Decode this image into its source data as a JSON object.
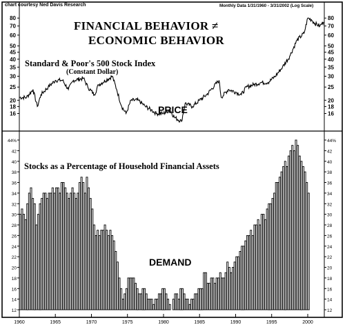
{
  "header": {
    "credit": "chart courtesy Ned Davis Research",
    "range": "Monthly Data 1/31/1960 - 3/31/2002 (Log Scale)"
  },
  "title": {
    "line1": "FINANCIAL BEHAVIOR ≠",
    "line2": "ECONOMIC BEHAVIOR"
  },
  "chart_data": [
    {
      "type": "line",
      "title": "Standard & Poor's 500 Stock Index",
      "subtitle": "(Constant Dollar)",
      "annotation": "PRICE",
      "scale": "log",
      "ylim": [
        14,
        85
      ],
      "y_ticks": [
        16,
        18,
        20,
        25,
        30,
        35,
        40,
        45,
        50,
        60,
        70,
        80
      ],
      "x": [
        1960.0,
        1961.0,
        1961.9,
        1962.5,
        1963.0,
        1964.0,
        1965.0,
        1966.0,
        1966.8,
        1967.5,
        1968.9,
        1969.5,
        1970.4,
        1971.0,
        1972.9,
        1973.5,
        1974.2,
        1974.8,
        1975.5,
        1976.5,
        1977.5,
        1978.3,
        1979.0,
        1980.0,
        1980.9,
        1981.5,
        1982.5,
        1983.0,
        1984.0,
        1985.0,
        1986.0,
        1987.7,
        1988.0,
        1989.0,
        1990.0,
        1990.8,
        1991.5,
        1992.5,
        1993.5,
        1994.5,
        1995.5,
        1996.5,
        1997.5,
        1998.5,
        1999.5,
        2000.0,
        2000.5,
        2001.0,
        2001.7,
        2002.2
      ],
      "values": [
        21,
        21,
        24,
        18,
        22,
        25,
        28,
        28,
        24,
        28,
        29,
        25,
        22,
        26,
        30,
        24,
        18,
        16,
        20,
        20,
        18,
        17,
        16,
        16,
        17,
        15,
        14,
        19,
        18,
        20,
        22,
        28,
        21,
        24,
        23,
        22,
        25,
        26,
        27,
        27,
        30,
        35,
        42,
        55,
        62,
        80,
        78,
        73,
        70,
        75
      ]
    },
    {
      "type": "bar",
      "title": "Stocks as a Percentage of Household Financial Assets",
      "annotation": "DEMAND",
      "ylim": [
        12,
        44
      ],
      "y_ticks": [
        12,
        14,
        16,
        18,
        20,
        22,
        24,
        26,
        28,
        30,
        32,
        34,
        36,
        38,
        40,
        42,
        44
      ],
      "y_tick_labels": [
        "12",
        "14",
        "16",
        "18",
        "20",
        "22",
        "24",
        "26",
        "28",
        "30",
        "32",
        "34",
        "36",
        "38",
        "40",
        "42",
        "44%"
      ],
      "x_ticks": [
        1960,
        1965,
        1970,
        1975,
        1980,
        1985,
        1990,
        1995,
        2000
      ],
      "start_year": 1960,
      "step_years": 0.25,
      "values": [
        30,
        31,
        30,
        29,
        32,
        34,
        35,
        33,
        32,
        28,
        30,
        32,
        33,
        34,
        34,
        33,
        34,
        34,
        35,
        34,
        35,
        35,
        34,
        36,
        36,
        35,
        34,
        33,
        34,
        35,
        34,
        33,
        34,
        36,
        37,
        36,
        34,
        37,
        35,
        33,
        31,
        28,
        26,
        27,
        26,
        27,
        27,
        28,
        27,
        26,
        27,
        26,
        25,
        23,
        21,
        18,
        16,
        14,
        15,
        16,
        18,
        18,
        18,
        18,
        17,
        16,
        15,
        15,
        16,
        16,
        15,
        14,
        14,
        14,
        13,
        14,
        14,
        15,
        15,
        16,
        16,
        15,
        14,
        13,
        12,
        14,
        15,
        15,
        14,
        16,
        16,
        15,
        14,
        14,
        13,
        14,
        14,
        15,
        15,
        16,
        16,
        16,
        19,
        19,
        17,
        17,
        18,
        18,
        17,
        18,
        18,
        19,
        18,
        18,
        19,
        21,
        20,
        19,
        20,
        21,
        22,
        22,
        23,
        24,
        24,
        25,
        26,
        26,
        27,
        26,
        28,
        28,
        29,
        28,
        30,
        30,
        29,
        31,
        32,
        32,
        33,
        34,
        36,
        36,
        37,
        38,
        39,
        40,
        39,
        41,
        42,
        43,
        42,
        44,
        43,
        41,
        40,
        39,
        38,
        36,
        34
      ]
    }
  ]
}
